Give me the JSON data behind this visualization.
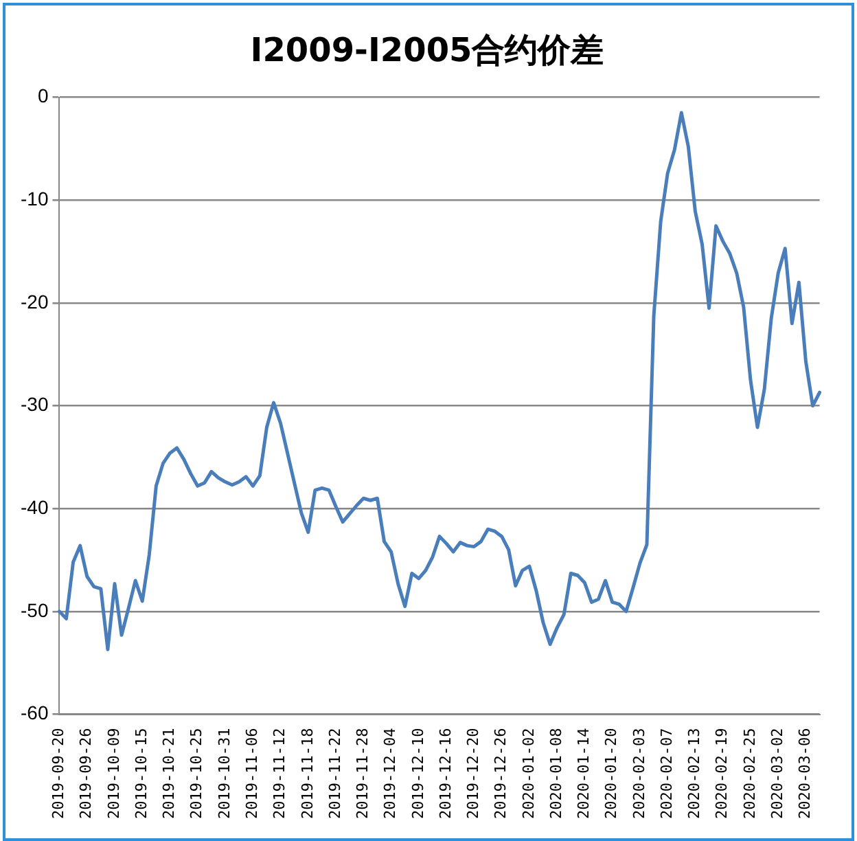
{
  "chart_data": {
    "type": "line",
    "title": "I2009-I2005合约价差",
    "categories": [
      "2019-09-20",
      null,
      null,
      null,
      "2019-09-26",
      null,
      null,
      null,
      "2019-10-09",
      null,
      null,
      null,
      "2019-10-15",
      null,
      null,
      null,
      "2019-10-21",
      null,
      null,
      null,
      "2019-10-25",
      null,
      null,
      null,
      "2019-10-31",
      null,
      null,
      null,
      "2019-11-06",
      null,
      null,
      null,
      "2019-11-12",
      null,
      null,
      null,
      "2019-11-18",
      null,
      null,
      null,
      "2019-11-22",
      null,
      null,
      null,
      "2019-11-28",
      null,
      null,
      null,
      "2019-12-04",
      null,
      null,
      null,
      "2019-12-10",
      null,
      null,
      null,
      "2019-12-16",
      null,
      null,
      null,
      "2019-12-20",
      null,
      null,
      null,
      "2019-12-26",
      null,
      null,
      null,
      "2020-01-02",
      null,
      null,
      null,
      "2020-01-08",
      null,
      null,
      null,
      "2020-01-14",
      null,
      null,
      null,
      "2020-01-20",
      null,
      null,
      null,
      "2020-02-03",
      null,
      null,
      null,
      "2020-02-07",
      null,
      null,
      null,
      "2020-02-13",
      null,
      null,
      null,
      "2020-02-19",
      null,
      null,
      null,
      "2020-02-25",
      null,
      null,
      null,
      "2020-03-02",
      null,
      null,
      null,
      "2020-03-06",
      null,
      null
    ],
    "series": [
      {
        "color": "#4a7ebb",
        "values": [
          -50.0,
          -50.7,
          -45.2,
          -43.6,
          -46.6,
          -47.6,
          -47.8,
          -53.7,
          -47.3,
          -52.3,
          -49.7,
          -47.0,
          -49.0,
          -44.5,
          -37.8,
          -35.6,
          -34.6,
          -34.1,
          -35.2,
          -36.6,
          -37.8,
          -37.5,
          -36.4,
          -37.0,
          -37.4,
          -37.7,
          -37.4,
          -36.9,
          -37.8,
          -36.8,
          -32.1,
          -29.7,
          -31.7,
          -34.6,
          -37.5,
          -40.4,
          -42.3,
          -38.2,
          -38.0,
          -38.2,
          -39.8,
          -41.3,
          -40.5,
          -39.7,
          -39.0,
          -39.2,
          -39.0,
          -43.2,
          -44.2,
          -47.3,
          -49.5,
          -46.3,
          -46.8,
          -46.0,
          -44.7,
          -42.7,
          -43.4,
          -44.2,
          -43.3,
          -43.6,
          -43.7,
          -43.2,
          -42.0,
          -42.2,
          -42.7,
          -44.0,
          -47.5,
          -46.0,
          -45.6,
          -48.0,
          -51.1,
          -53.2,
          -51.6,
          -50.3,
          -46.3,
          -46.5,
          -47.2,
          -49.1,
          -48.8,
          -47.0,
          -49.1,
          -49.3,
          -50.0,
          -47.7,
          -45.3,
          -43.5,
          -21.3,
          -12.1,
          -7.4,
          -5.1,
          -1.5,
          -4.8,
          -11.1,
          -14.3,
          -20.5,
          -12.5,
          -14.0,
          -15.2,
          -17.1,
          -20.4,
          -27.5,
          -32.1,
          -28.4,
          -21.5,
          -17.1,
          -14.7,
          -22.0,
          -18.0,
          -25.7,
          -30.0,
          -28.7
        ]
      }
    ],
    "ylim": [
      -60,
      0
    ],
    "yticks": [
      -60,
      -50,
      -40,
      -30,
      -20,
      -10,
      0
    ],
    "grid": "y",
    "legend": false,
    "marker": "none",
    "line_style": "solid"
  }
}
